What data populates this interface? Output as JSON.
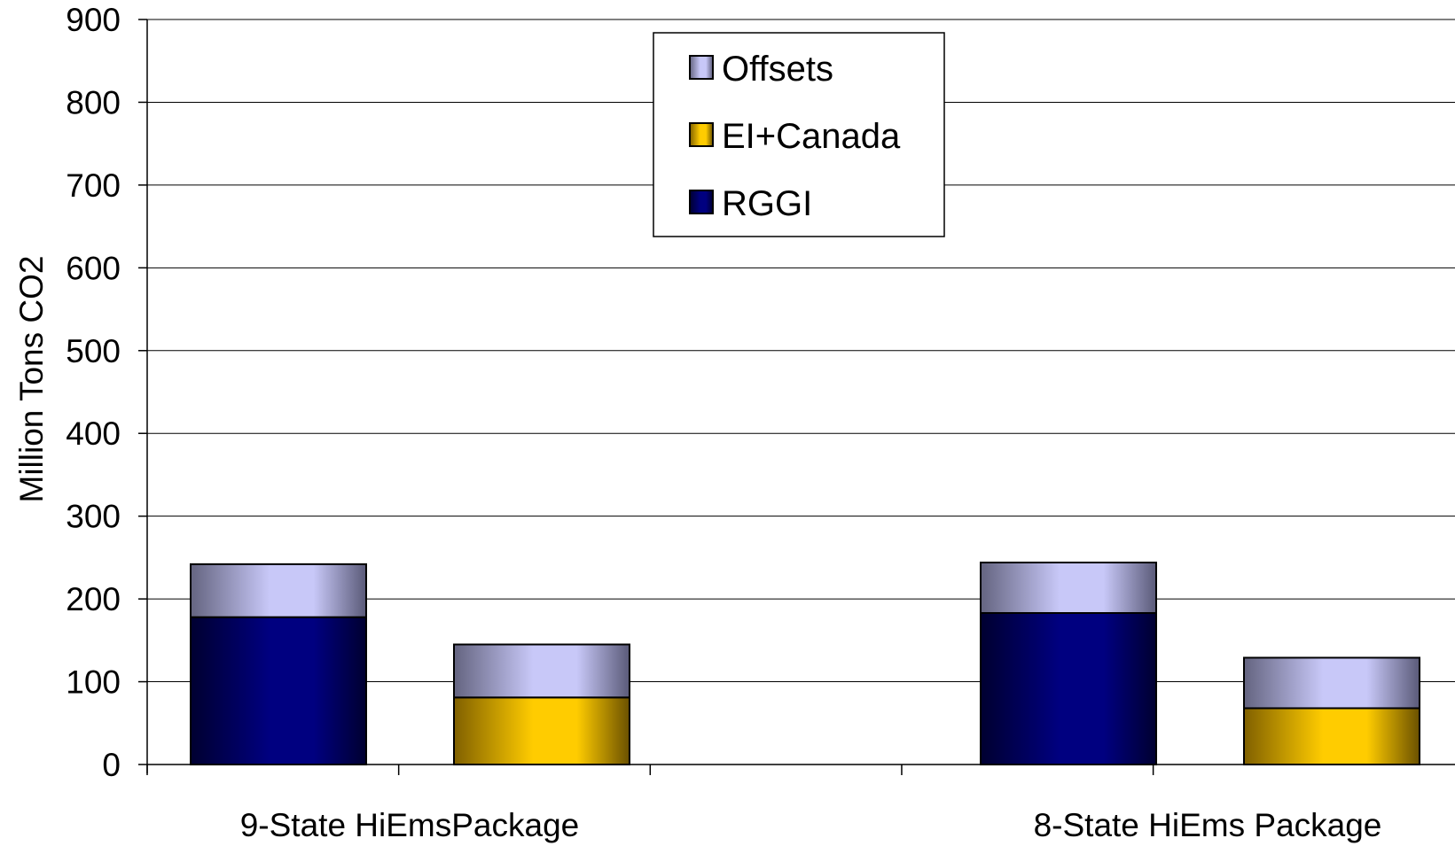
{
  "chart_data": {
    "type": "bar",
    "stacked": true,
    "title": "",
    "ylabel": "Million Tons CO2",
    "xlabel": "",
    "ylim": [
      0,
      900
    ],
    "yticks": [
      0,
      100,
      200,
      300,
      400,
      500,
      600,
      700,
      800,
      900
    ],
    "grid": true,
    "legend_position": "top-center",
    "groups": [
      "9-State HiEmsPackage",
      "8-State HiEms Package"
    ],
    "bars": [
      {
        "group": 0,
        "segments": [
          {
            "series": "RGGI",
            "value": 178
          },
          {
            "series": "Offsets",
            "value": 64
          }
        ]
      },
      {
        "group": 0,
        "segments": [
          {
            "series": "EI+Canada",
            "value": 81
          },
          {
            "series": "Offsets",
            "value": 64
          }
        ]
      },
      {
        "group": 1,
        "segments": [
          {
            "series": "RGGI",
            "value": 183
          },
          {
            "series": "Offsets",
            "value": 61
          }
        ]
      },
      {
        "group": 1,
        "segments": [
          {
            "series": "EI+Canada",
            "value": 68
          },
          {
            "series": "Offsets",
            "value": 61
          }
        ]
      }
    ],
    "legend": [
      {
        "name": "Offsets",
        "color": "#c8c8f8"
      },
      {
        "name": "EI+Canada",
        "color": "#ffcc00"
      },
      {
        "name": "RGGI",
        "color": "#000080"
      }
    ],
    "colors": {
      "Offsets": "#c8c8f8",
      "EI+Canada": "#ffcc00",
      "RGGI": "#000080"
    }
  }
}
